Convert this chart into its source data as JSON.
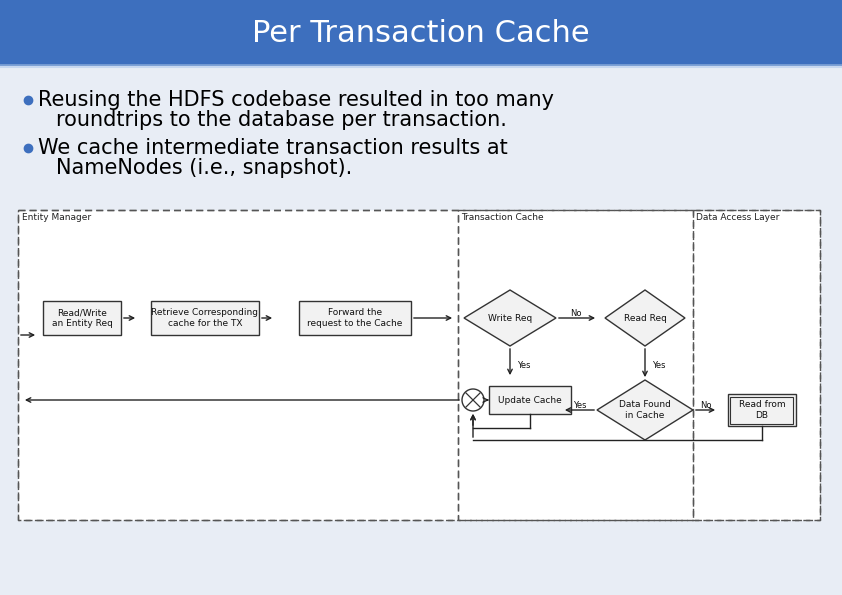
{
  "title": "Per Transaction Cache",
  "title_bg_color": "#3d6fbe",
  "title_text_color": "#ffffff",
  "slide_bg_color": "#e8edf5",
  "bullet_color": "#3d6fbe",
  "bullet1_line1": "Reusing the HDFS codebase resulted in too many",
  "bullet1_line2": "roundtrips to the database per transaction.",
  "bullet2_line1": "We cache intermediate transaction results at",
  "bullet2_line2": "NameNodes (i.e., snapshot).",
  "text_color": "#000000",
  "box_fill": "#f0f0f0",
  "box_border": "#333333",
  "arrow_color": "#222222",
  "diag_border": "#555555"
}
